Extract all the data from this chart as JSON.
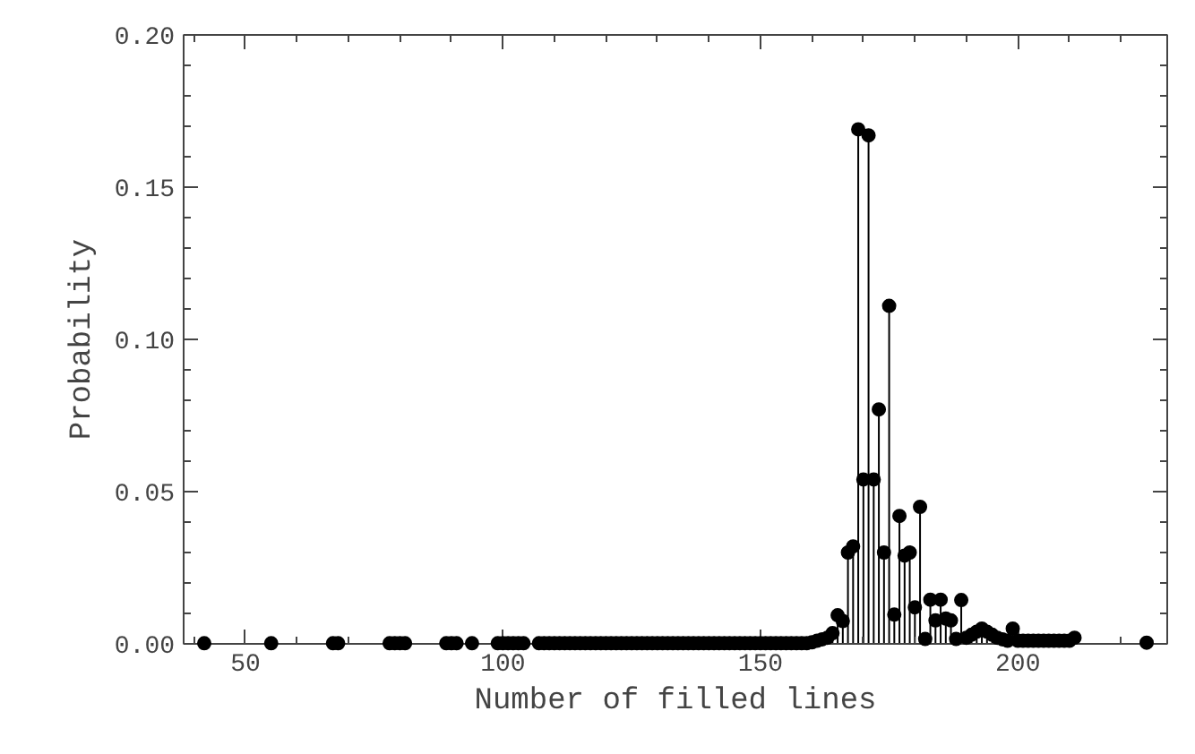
{
  "chart_data": {
    "type": "lollipop",
    "xlabel": "Number of filled lines",
    "ylabel": "Probability",
    "x": [
      42,
      55,
      67,
      68,
      78,
      79,
      80,
      81,
      89,
      90,
      91,
      94,
      99,
      100,
      101,
      102,
      103,
      104,
      107,
      108,
      109,
      110,
      111,
      112,
      113,
      114,
      115,
      116,
      117,
      118,
      119,
      120,
      121,
      122,
      123,
      124,
      125,
      126,
      127,
      128,
      129,
      130,
      131,
      132,
      133,
      134,
      135,
      136,
      137,
      138,
      139,
      140,
      141,
      142,
      143,
      144,
      145,
      146,
      147,
      148,
      149,
      150,
      151,
      152,
      153,
      154,
      155,
      156,
      157,
      158,
      159,
      160,
      161,
      162,
      163,
      164,
      165,
      166,
      167,
      168,
      169,
      170,
      171,
      172,
      173,
      174,
      175,
      176,
      177,
      178,
      179,
      180,
      181,
      182,
      183,
      184,
      185,
      186,
      187,
      188,
      189,
      190,
      191,
      192,
      193,
      194,
      195,
      196,
      197,
      198,
      199,
      200,
      201,
      202,
      203,
      204,
      205,
      206,
      207,
      208,
      209,
      210,
      211,
      225
    ],
    "series": [
      {
        "color": "#000000",
        "values": [
          0.0002,
          0.0002,
          0.0002,
          0.0002,
          0.0002,
          0.0002,
          0.0002,
          0.0002,
          0.0002,
          0.0002,
          0.0002,
          0.0002,
          0.0002,
          0.0002,
          0.0002,
          0.0002,
          0.0002,
          0.0002,
          0.0002,
          0.0002,
          0.0002,
          0.0002,
          0.0002,
          0.0002,
          0.0002,
          0.0002,
          0.0002,
          0.0002,
          0.0002,
          0.0002,
          0.0002,
          0.0002,
          0.0002,
          0.0002,
          0.0002,
          0.0002,
          0.0002,
          0.0002,
          0.0002,
          0.0002,
          0.0002,
          0.0002,
          0.0002,
          0.0002,
          0.0002,
          0.0002,
          0.0002,
          0.0002,
          0.0002,
          0.0002,
          0.0002,
          0.0002,
          0.0002,
          0.0002,
          0.0002,
          0.0002,
          0.0002,
          0.0002,
          0.0002,
          0.0002,
          0.0002,
          0.0002,
          0.0002,
          0.0002,
          0.0002,
          0.0002,
          0.0002,
          0.0002,
          0.0002,
          0.0002,
          0.0002,
          0.0005,
          0.001,
          0.0015,
          0.002,
          0.0035,
          0.0094,
          0.0075,
          0.03,
          0.032,
          0.169,
          0.054,
          0.167,
          0.054,
          0.077,
          0.03,
          0.111,
          0.0096,
          0.042,
          0.029,
          0.03,
          0.012,
          0.045,
          0.0016,
          0.0145,
          0.0077,
          0.0145,
          0.0083,
          0.0077,
          0.0016,
          0.0144,
          0.002,
          0.003,
          0.004,
          0.005,
          0.004,
          0.003,
          0.002,
          0.0015,
          0.001,
          0.005,
          0.001,
          0.001,
          0.001,
          0.001,
          0.001,
          0.001,
          0.001,
          0.001,
          0.001,
          0.001,
          0.001,
          0.002,
          0.0004
        ]
      }
    ],
    "xlim": [
      38,
      229
    ],
    "ylim": [
      0,
      0.2
    ],
    "xticks": [
      50,
      100,
      150,
      200
    ],
    "yticks": [
      {
        "value": 0,
        "label": "0.00"
      },
      {
        "value": 0.05,
        "label": "0.05"
      },
      {
        "value": 0.1,
        "label": "0.10"
      },
      {
        "value": 0.15,
        "label": "0.15"
      },
      {
        "value": 0.2,
        "label": "0.20"
      }
    ],
    "marker": "circle",
    "grid": false
  }
}
